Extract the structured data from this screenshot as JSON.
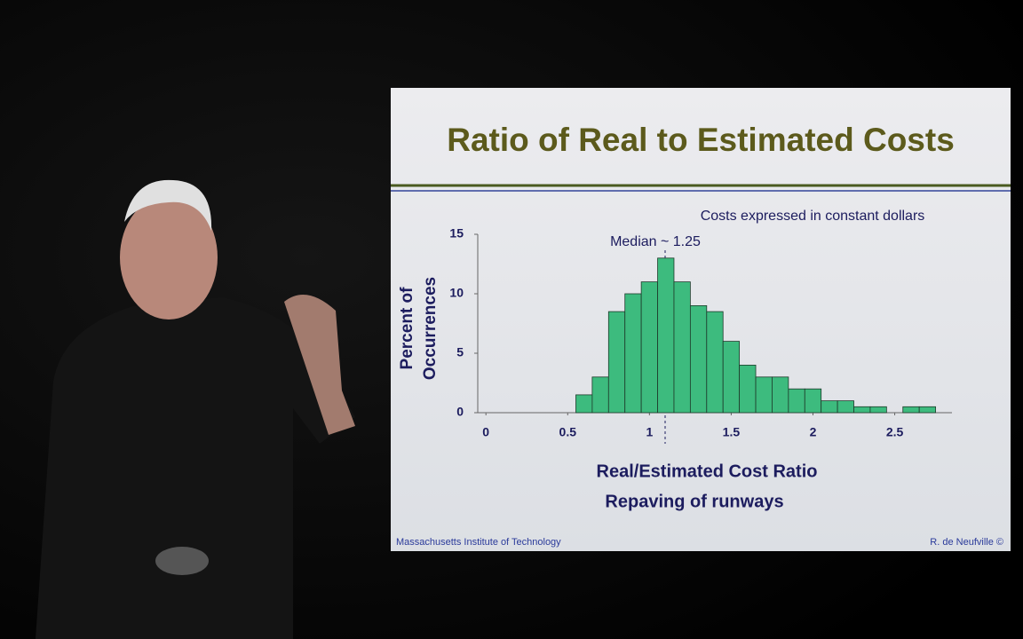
{
  "slide": {
    "title": "Ratio of Real to Estimated Costs",
    "footer_left": "Massachusetts Institute of Technology",
    "footer_right": "R. de Neufville  ©"
  },
  "chart_data": {
    "type": "histogram",
    "note": "Costs expressed in constant dollars",
    "annotation": "Median ~ 1.25",
    "x_label": "Real/Estimated Cost Ratio",
    "subtitle": "Repaving of runways",
    "y_label": [
      "Percent of",
      "Occurrences"
    ],
    "bins": [
      0.55,
      0.65,
      0.75,
      0.85,
      0.95,
      1.05,
      1.15,
      1.25,
      1.35,
      1.45,
      1.55,
      1.65,
      1.75,
      1.85,
      1.95,
      2.05,
      2.15,
      2.25,
      2.35,
      2.45,
      2.55,
      2.65,
      2.75
    ],
    "values": [
      1.5,
      3,
      8.5,
      10,
      11,
      13,
      11,
      9,
      8.5,
      6,
      4,
      3,
      3,
      2,
      2,
      1,
      1,
      0.5,
      0.5,
      0,
      0.5,
      0.5
    ],
    "color": "#3dbb7e",
    "xlim": [
      -0.05,
      2.85
    ],
    "xticks": [
      0,
      0.5,
      1,
      1.5,
      2,
      2.5
    ],
    "ylim": [
      0,
      15
    ],
    "yticks": [
      0,
      5,
      10,
      15
    ]
  }
}
